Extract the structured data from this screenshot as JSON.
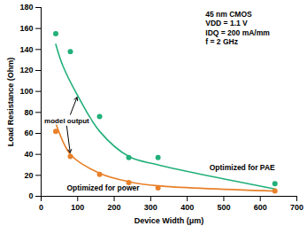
{
  "chart_data": {
    "type": "scatter",
    "xlabel": "Device Width (μm)",
    "ylabel": "Load Resistance (Ohm)",
    "xlim": [
      0,
      700
    ],
    "xticks": [
      0,
      100,
      200,
      300,
      400,
      500,
      600,
      700
    ],
    "ylim": [
      0,
      180
    ],
    "yticks": [
      0,
      20,
      40,
      60,
      80,
      100,
      120,
      140,
      160,
      180
    ],
    "grid": false,
    "annotations": [
      "45 nm CMOS",
      "VDD = 1.1 V",
      "IDQ = 200 mA/mm",
      "f = 2 GHz"
    ],
    "model_label": "model output",
    "series": [
      {
        "name": "Optimized for PAE",
        "type": "line",
        "color": "#22b07a",
        "x": [
          40,
          60,
          100,
          160,
          240,
          320,
          640
        ],
        "values": [
          145,
          124,
          96,
          62,
          38,
          30,
          7
        ]
      },
      {
        "type": "scatter",
        "marker": "circle",
        "color": "#22b07a",
        "x": [
          40,
          80,
          160,
          240,
          320,
          640
        ],
        "values": [
          155,
          138,
          76,
          37,
          37,
          12
        ]
      },
      {
        "name": "Optimized for power",
        "type": "line",
        "color": "#e8802a",
        "x": [
          40,
          80,
          160,
          240,
          320,
          640
        ],
        "values": [
          70,
          40,
          22,
          14,
          10,
          5
        ]
      },
      {
        "type": "scatter",
        "marker": "circle",
        "color": "#e8802a",
        "x": [
          40,
          80,
          160,
          240,
          320,
          640
        ],
        "values": [
          62,
          38,
          21,
          13,
          8,
          5
        ]
      }
    ]
  }
}
